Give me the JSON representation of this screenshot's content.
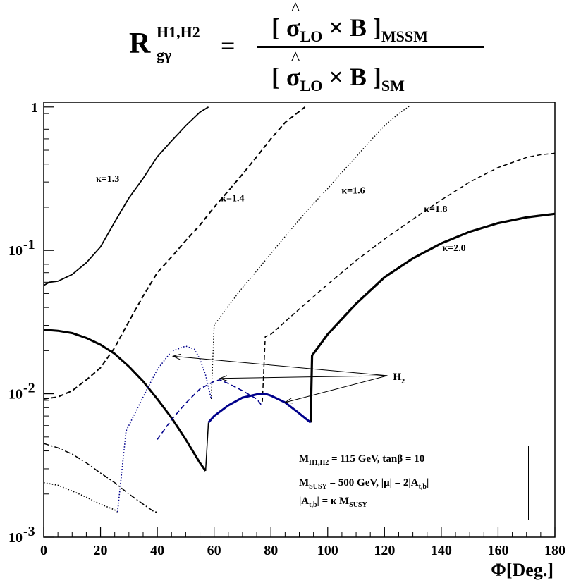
{
  "formula": {
    "lhs": "R",
    "lhs_sup": "H1,H2",
    "lhs_sub": "gγ",
    "equals": "=",
    "num_open": "[ ",
    "num_sigma": "σ",
    "num_sigma_sub": "LO",
    "num_times_b": " × B ]",
    "num_sub": "MSSM",
    "den_open": "[ ",
    "den_sigma": "σ",
    "den_sigma_sub": "LO",
    "den_times_b": " × B ]",
    "den_sub": "SM"
  },
  "legend_box": {
    "line1_m": "M",
    "line1_m_sub": "H1,H2",
    "line1_rest": " = 115 GeV,  tanβ = 10",
    "line2_m": "M",
    "line2_m_sub": "SUSY",
    "line2_rest": " = 500 GeV,   |μ| = 2|A",
    "line2_a_sub": "t,b",
    "line2_end": "|",
    "line3_a": "|A",
    "line3_a_sub": "t,b",
    "line3_rest": "| = κ M",
    "line3_m_sub": "SUSY"
  },
  "chart_data": {
    "type": "line",
    "title": "",
    "xlabel": "Φ[Deg.]",
    "ylabel": "",
    "xlim": [
      0,
      180
    ],
    "ylim": [
      0.001,
      1.08
    ],
    "yscale": "log",
    "grid": false,
    "x_ticks": [
      0,
      20,
      40,
      60,
      80,
      100,
      120,
      140,
      160,
      180
    ],
    "y_ticks": [
      {
        "value": 1,
        "base": "1",
        "exp": ""
      },
      {
        "value": 0.1,
        "base": "10",
        "exp": "-1"
      },
      {
        "value": 0.01,
        "base": "10",
        "exp": "-2"
      },
      {
        "value": 0.001,
        "base": "10",
        "exp": "-3"
      }
    ],
    "series": [
      {
        "name": "κ=1.3",
        "style": "solid",
        "color": "#000000",
        "width": 1.8,
        "x": [
          0,
          2,
          5,
          10,
          15,
          20,
          25,
          30,
          35,
          40,
          45,
          50,
          55,
          58
        ],
        "y": [
          0.057,
          0.06,
          0.061,
          0.068,
          0.082,
          0.106,
          0.158,
          0.232,
          0.318,
          0.45,
          0.58,
          0.74,
          0.92,
          1.0
        ]
      },
      {
        "name": "κ=1.4",
        "style": "dashed",
        "color": "#000000",
        "width": 2,
        "x": [
          0,
          5,
          10,
          15,
          20,
          25,
          30,
          35,
          40,
          45,
          50,
          55,
          60,
          65,
          70,
          75,
          80,
          85,
          92
        ],
        "y": [
          0.0092,
          0.0095,
          0.0105,
          0.0125,
          0.0152,
          0.021,
          0.032,
          0.048,
          0.07,
          0.09,
          0.117,
          0.15,
          0.2,
          0.26,
          0.34,
          0.45,
          0.6,
          0.78,
          1.0
        ]
      },
      {
        "name": "κ=1.6",
        "style": "dotted",
        "color": "#000000",
        "width": 1.3,
        "x": [
          59,
          60,
          65,
          70,
          75,
          80,
          85,
          90,
          95,
          100,
          105,
          110,
          115,
          120,
          125,
          129
        ],
        "y": [
          0.0092,
          0.03,
          0.041,
          0.055,
          0.072,
          0.095,
          0.125,
          0.164,
          0.212,
          0.27,
          0.35,
          0.45,
          0.58,
          0.74,
          0.9,
          1.02
        ]
      },
      {
        "name": "κ=1.8",
        "style": "dashdash",
        "color": "#000000",
        "width": 1.5,
        "x": [
          77,
          78,
          80,
          90,
          100,
          110,
          120,
          130,
          140,
          150,
          160,
          170,
          175,
          180
        ],
        "y": [
          0.0088,
          0.025,
          0.026,
          0.039,
          0.058,
          0.085,
          0.12,
          0.165,
          0.225,
          0.3,
          0.378,
          0.445,
          0.465,
          0.476
        ]
      },
      {
        "name": "κ=2.0",
        "style": "solid",
        "color": "#000000",
        "width": 3.2,
        "x": [
          94,
          94.5,
          100,
          110,
          120,
          130,
          140,
          150,
          160,
          170,
          180
        ],
        "y": [
          0.0063,
          0.0185,
          0.026,
          0.0425,
          0.065,
          0.088,
          0.112,
          0.135,
          0.155,
          0.17,
          0.18
        ]
      },
      {
        "name": "",
        "style": "solid",
        "color": "#000000",
        "width": 3,
        "x": [
          0,
          5,
          10,
          15,
          20,
          25,
          30,
          35,
          40,
          45,
          50,
          55,
          57
        ],
        "y": [
          0.028,
          0.0275,
          0.0265,
          0.0245,
          0.022,
          0.019,
          0.0155,
          0.0122,
          0.0092,
          0.0068,
          0.0048,
          0.0033,
          0.0029
        ]
      },
      {
        "name": "",
        "style": "solid",
        "color": "#000000",
        "width": 1.5,
        "x": [
          57,
          58
        ],
        "y": [
          0.0029,
          0.0063
        ]
      },
      {
        "name": "",
        "style": "dashdot",
        "color": "#000000",
        "width": 1.5,
        "x": [
          0,
          5,
          10,
          15,
          20,
          25,
          30,
          35,
          39,
          40
        ],
        "y": [
          0.0045,
          0.0042,
          0.0038,
          0.0033,
          0.0028,
          0.0024,
          0.002,
          0.0017,
          0.0015,
          0.0015
        ]
      },
      {
        "name": "",
        "style": "dotted",
        "color": "#000000",
        "width": 1.6,
        "x": [
          0,
          5,
          10,
          15,
          20,
          25,
          26
        ],
        "y": [
          0.0024,
          0.0023,
          0.0021,
          0.0019,
          0.0017,
          0.00155,
          0.0015
        ]
      },
      {
        "name": "",
        "style": "dotted",
        "color": "#00008b",
        "width": 1.6,
        "x": [
          26,
          29,
          35,
          40,
          45,
          50,
          53,
          55,
          57,
          59
        ],
        "y": [
          0.0015,
          0.0055,
          0.0095,
          0.0148,
          0.0198,
          0.0215,
          0.0205,
          0.0175,
          0.0135,
          0.0092
        ]
      },
      {
        "name": "",
        "style": "dashed",
        "color": "#00008b",
        "width": 1.6,
        "x": [
          40,
          45,
          50,
          55,
          60,
          62,
          65,
          70,
          75,
          77
        ],
        "y": [
          0.0048,
          0.0066,
          0.0086,
          0.0108,
          0.0122,
          0.0125,
          0.0118,
          0.0105,
          0.0092,
          0.0082
        ]
      },
      {
        "name": "",
        "style": "solid",
        "color": "#00008b",
        "width": 3,
        "x": [
          58,
          60,
          65,
          70,
          75,
          78,
          80,
          85,
          90,
          94
        ],
        "y": [
          0.0063,
          0.007,
          0.0083,
          0.0094,
          0.0099,
          0.01,
          0.0097,
          0.0087,
          0.0073,
          0.0063
        ]
      }
    ],
    "annotations": [
      {
        "text": "κ=1.3",
        "x": 22.5,
        "y": 0.3
      },
      {
        "text": "κ=1.4",
        "x": 66.5,
        "y": 0.22
      },
      {
        "text": "κ=1.6",
        "x": 109,
        "y": 0.25
      },
      {
        "text": "κ=1.8",
        "x": 138,
        "y": 0.185
      },
      {
        "text": "κ=2.0",
        "x": 144.5,
        "y": 0.099
      }
    ],
    "arrow_label": {
      "text": "H",
      "sub": "2",
      "x": 123,
      "y": 0.0125
    },
    "arrow_targets": [
      {
        "x": 45.5,
        "y": 0.0183
      },
      {
        "x": 62,
        "y": 0.0128
      },
      {
        "x": 85,
        "y": 0.0087
      }
    ]
  }
}
